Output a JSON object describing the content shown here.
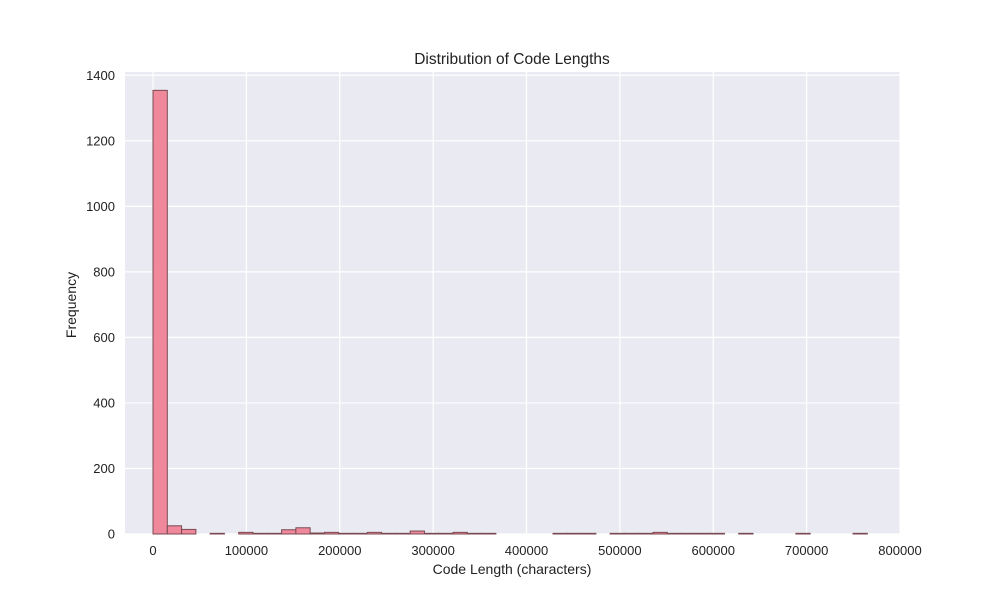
{
  "colors": {
    "plot_background": "#eaeaf2",
    "grid": "#ffffff",
    "bar_fill": "#f0889b",
    "bar_edge": "#7a4a52"
  },
  "chart_data": {
    "type": "bar",
    "subtype": "histogram",
    "title": "Distribution of Code Lengths",
    "xlabel": "Code Length (characters)",
    "ylabel": "Frequency",
    "xlim": [
      -30000,
      800000
    ],
    "ylim": [
      0,
      1410
    ],
    "xticks": [
      0,
      100000,
      200000,
      300000,
      400000,
      500000,
      600000,
      700000,
      800000
    ],
    "yticks": [
      0,
      200,
      400,
      600,
      800,
      1000,
      1200,
      1400
    ],
    "grid": true,
    "bin_width": 15300,
    "bins": [
      {
        "x0": 0,
        "count": 1354
      },
      {
        "x0": 15300,
        "count": 25
      },
      {
        "x0": 30600,
        "count": 14
      },
      {
        "x0": 61200,
        "count": 2
      },
      {
        "x0": 91800,
        "count": 5
      },
      {
        "x0": 107100,
        "count": 2
      },
      {
        "x0": 122400,
        "count": 2
      },
      {
        "x0": 137700,
        "count": 13
      },
      {
        "x0": 153000,
        "count": 19
      },
      {
        "x0": 168300,
        "count": 3
      },
      {
        "x0": 183600,
        "count": 5
      },
      {
        "x0": 198900,
        "count": 2
      },
      {
        "x0": 214200,
        "count": 2
      },
      {
        "x0": 229500,
        "count": 5
      },
      {
        "x0": 244800,
        "count": 2
      },
      {
        "x0": 260100,
        "count": 2
      },
      {
        "x0": 275400,
        "count": 9
      },
      {
        "x0": 290700,
        "count": 2
      },
      {
        "x0": 306000,
        "count": 2
      },
      {
        "x0": 321300,
        "count": 5
      },
      {
        "x0": 336600,
        "count": 2
      },
      {
        "x0": 351900,
        "count": 2
      },
      {
        "x0": 428400,
        "count": 2
      },
      {
        "x0": 443700,
        "count": 2
      },
      {
        "x0": 459000,
        "count": 2
      },
      {
        "x0": 489600,
        "count": 2
      },
      {
        "x0": 504900,
        "count": 2
      },
      {
        "x0": 520200,
        "count": 2
      },
      {
        "x0": 535500,
        "count": 5
      },
      {
        "x0": 550800,
        "count": 2
      },
      {
        "x0": 566100,
        "count": 2
      },
      {
        "x0": 581400,
        "count": 2
      },
      {
        "x0": 596700,
        "count": 2
      },
      {
        "x0": 627300,
        "count": 2
      },
      {
        "x0": 688500,
        "count": 2
      },
      {
        "x0": 749700,
        "count": 2
      }
    ]
  }
}
